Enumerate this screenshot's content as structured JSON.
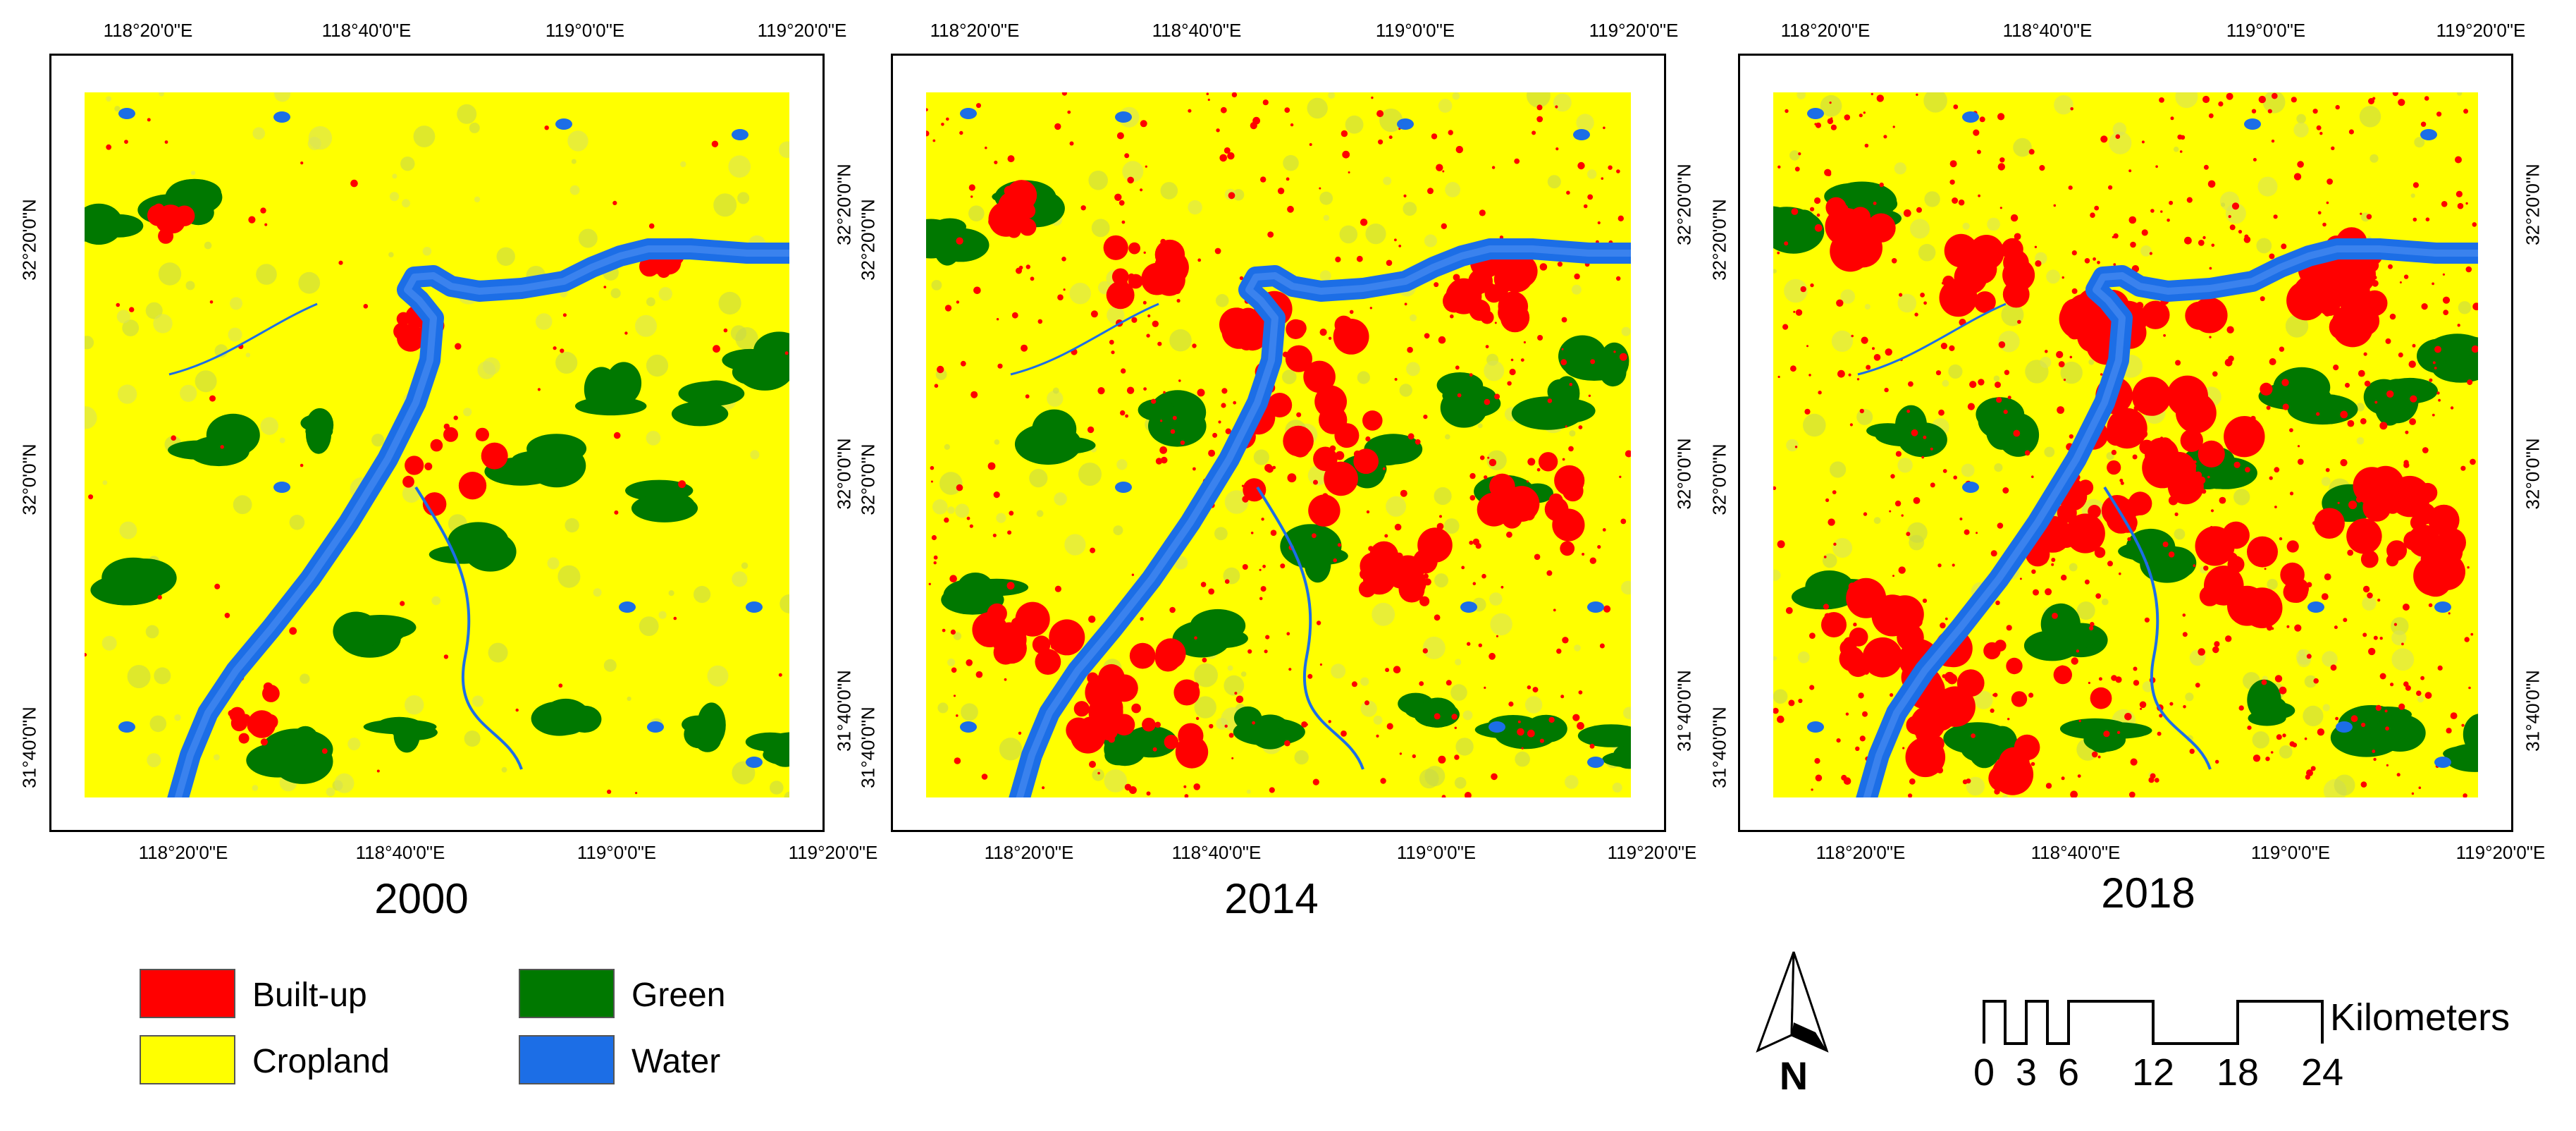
{
  "colors": {
    "built_up": "#ff0000",
    "cropland": "#ffff00",
    "green": "#007800",
    "water": "#1c6ee6"
  },
  "coords": {
    "top_lon": [
      "118°20'0\"E",
      "118°40'0\"E",
      "119°0'0\"E",
      "119°20'0\"E"
    ],
    "bottom_lon": [
      "118°20'0\"E",
      "118°40'0\"E",
      "119°0'0\"E",
      "119°20'0\"E"
    ],
    "left_lat": [
      "32°20'0\"N",
      "32°0'0\"N",
      "31°40'0\"N"
    ],
    "right_lat": [
      "32°20'0\"N",
      "32°0'0\"N",
      "31°40'0\"N"
    ]
  },
  "panels": [
    {
      "year": "2000",
      "urban_level": 1
    },
    {
      "year": "2014",
      "urban_level": 2
    },
    {
      "year": "2018",
      "urban_level": 3
    }
  ],
  "legend": {
    "built_up": "Built-up",
    "cropland": "Cropland",
    "green": "Green",
    "water": "Water"
  },
  "north_arrow": {
    "letter": "N"
  },
  "scale_bar": {
    "ticks": [
      "0",
      "3",
      "6",
      "12",
      "18",
      "24"
    ],
    "unit": "Kilometers"
  }
}
